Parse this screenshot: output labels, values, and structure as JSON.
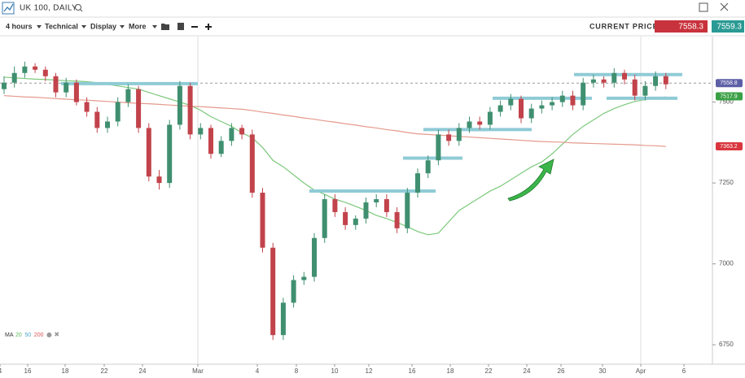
{
  "header": {
    "title": "UK 100, DAILY"
  },
  "toolbar": {
    "items": [
      "4 hours",
      "Technical",
      "Display",
      "More"
    ],
    "price_label": "CURRENT PRICE:",
    "bid": "7558.3",
    "ask": "7559.3"
  },
  "chart_data": {
    "type": "candlestick",
    "open": [
      7540,
      7560,
      7590,
      7610,
      7600,
      7580,
      7530,
      7560,
      7500,
      7470,
      7420,
      7440,
      7500,
      7540,
      7420,
      7270,
      7250,
      7430,
      7550,
      7400,
      7420,
      7340,
      7380,
      7420,
      7400,
      7220,
      7050,
      6780,
      6880,
      6950,
      6960,
      7080,
      7200,
      7160,
      7120,
      7140,
      7190,
      7200,
      7160,
      7110,
      7220,
      7280,
      7320,
      7400,
      7380,
      7420,
      7440,
      7430,
      7470,
      7490,
      7510,
      7450,
      7480,
      7490,
      7500,
      7520,
      7490,
      7560,
      7570,
      7560,
      7590,
      7570,
      7520,
      7550,
      7580
    ],
    "high": [
      7580,
      7610,
      7625,
      7620,
      7610,
      7590,
      7575,
      7570,
      7515,
      7485,
      7455,
      7515,
      7555,
      7550,
      7435,
      7290,
      7445,
      7565,
      7560,
      7435,
      7430,
      7395,
      7435,
      7430,
      7415,
      7235,
      7065,
      6895,
      6965,
      6975,
      7095,
      7215,
      7215,
      7175,
      7150,
      7205,
      7215,
      7215,
      7175,
      7235,
      7295,
      7335,
      7415,
      7415,
      7435,
      7455,
      7455,
      7485,
      7505,
      7525,
      7520,
      7495,
      7505,
      7515,
      7535,
      7535,
      7575,
      7585,
      7580,
      7605,
      7600,
      7585,
      7565,
      7595,
      7590
    ],
    "low": [
      7525,
      7545,
      7575,
      7590,
      7565,
      7515,
      7515,
      7490,
      7455,
      7405,
      7405,
      7425,
      7485,
      7405,
      7255,
      7230,
      7235,
      7415,
      7385,
      7385,
      7325,
      7330,
      7365,
      7385,
      7205,
      7035,
      6765,
      6765,
      6865,
      6935,
      6945,
      7065,
      7145,
      7105,
      7105,
      7125,
      7175,
      7145,
      7095,
      7095,
      7205,
      7265,
      7305,
      7365,
      7365,
      7405,
      7415,
      7415,
      7455,
      7475,
      7435,
      7435,
      7465,
      7475,
      7485,
      7475,
      7475,
      7545,
      7545,
      7545,
      7555,
      7505,
      7505,
      7535,
      7540
    ],
    "close": [
      7560,
      7590,
      7610,
      7600,
      7580,
      7530,
      7560,
      7500,
      7470,
      7420,
      7440,
      7500,
      7540,
      7420,
      7270,
      7250,
      7430,
      7550,
      7400,
      7420,
      7340,
      7380,
      7420,
      7400,
      7220,
      7050,
      6780,
      6880,
      6950,
      6960,
      7080,
      7200,
      7160,
      7120,
      7140,
      7190,
      7200,
      7160,
      7110,
      7220,
      7280,
      7320,
      7400,
      7380,
      7420,
      7440,
      7430,
      7470,
      7490,
      7510,
      7450,
      7480,
      7490,
      7500,
      7520,
      7490,
      7560,
      7570,
      7560,
      7590,
      7570,
      7520,
      7550,
      7580,
      7555
    ],
    "up_color": "#3f8f70",
    "down_color": "#c2434b",
    "ma_lines": [
      {
        "color": "#7cc97c",
        "values": [
          7577,
          7575,
          7573,
          7571,
          7570,
          7568,
          7566,
          7565,
          7563,
          7560,
          7555,
          7550,
          7545,
          7540,
          7530,
          7520,
          7510,
          7500,
          7490,
          7475,
          7455,
          7440,
          7425,
          7405,
          7390,
          7360,
          7320,
          7300,
          7275,
          7250,
          7228,
          7215,
          7200,
          7190,
          7178,
          7165,
          7150,
          7140,
          7128,
          7115,
          7100,
          7090,
          7095,
          7130,
          7165,
          7185,
          7205,
          7225,
          7240,
          7260,
          7280,
          7300,
          7315,
          7340,
          7370,
          7400,
          7425,
          7445,
          7465,
          7480,
          7492,
          7502,
          7508,
          7512,
          7516
        ]
      },
      {
        "color": "#e59a8c",
        "values": [
          7520,
          7518,
          7516,
          7515,
          7513,
          7511,
          7509,
          7507,
          7506,
          7504,
          7502,
          7500,
          7498,
          7496,
          7495,
          7493,
          7491,
          7489,
          7487,
          7486,
          7484,
          7482,
          7480,
          7478,
          7474,
          7469,
          7465,
          7460,
          7456,
          7451,
          7447,
          7442,
          7438,
          7433,
          7429,
          7424,
          7420,
          7415,
          7411,
          7406,
          7402,
          7400,
          7398,
          7396,
          7394,
          7392,
          7390,
          7388,
          7386,
          7384,
          7382,
          7380,
          7378,
          7377,
          7376,
          7374,
          7373,
          7372,
          7371,
          7370,
          7369,
          7368,
          7366,
          7365,
          7363
        ]
      }
    ],
    "ma_legend": {
      "title": "MA",
      "items": [
        {
          "name": "20",
          "color": "#5cb85c"
        },
        {
          "name": "50",
          "color": "#4aa3c8"
        },
        {
          "name": "200",
          "color": "#d9534f"
        }
      ]
    },
    "levels": {
      "color": "#8fcbd6",
      "values": [
        7557,
        7225,
        7327,
        7415,
        7415,
        7512,
        7585,
        7512
      ]
    },
    "price_tags": [
      {
        "value": 7558.8,
        "color": "#5d5fa6"
      },
      {
        "value": 7517.9,
        "color": "#3aa046"
      },
      {
        "value": 7363.2,
        "color": "#d9363e"
      }
    ],
    "x_labels": [
      "4",
      "16",
      "18",
      "22",
      "24",
      "Mar",
      "4",
      "8",
      "10",
      "12",
      "16",
      "18",
      "22",
      "24",
      "26",
      "30",
      "Apr",
      "6"
    ],
    "ylim": [
      6690,
      7702.5
    ],
    "yticks": [
      6750,
      7000,
      7250,
      7500
    ],
    "grid": false
  }
}
